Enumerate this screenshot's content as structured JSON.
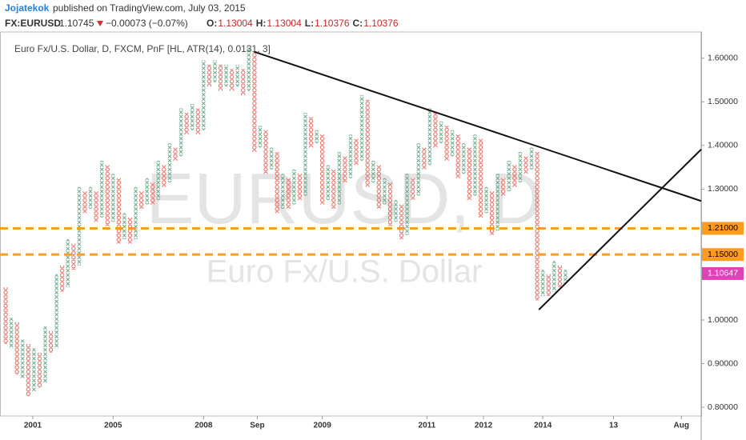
{
  "header": {
    "author": "Jojatekok",
    "published": "published on TradingView.com, July 03, 2015",
    "ticker": "FX:EURUSD",
    "last": "1.10745",
    "change": "−0.00073 (−0.07%)",
    "ohlc": [
      {
        "label": "O:",
        "value": "1.13004"
      },
      {
        "label": "H:",
        "value": "1.13004"
      },
      {
        "label": "L:",
        "value": "1.10376"
      },
      {
        "label": "C:",
        "value": "1.10376"
      }
    ]
  },
  "chart_data": {
    "type": "pnf",
    "title": "Euro Fx/U.S. Dollar, D, FXCM, PnF [HL, ATR(14), 0.0131, 3]",
    "watermark": "EURUSD, D",
    "watermark_subtitle": "Euro Fx/U.S. Dollar",
    "first_column": "O",
    "x_color": "#6aa888",
    "o_color": "#e8675e",
    "lows": [
      0.95,
      0.94,
      0.88,
      0.87,
      0.83,
      0.84,
      0.85,
      0.86,
      0.93,
      0.94,
      1.07,
      1.08,
      1.12,
      1.13,
      1.25,
      1.26,
      1.23,
      1.24,
      1.22,
      1.23,
      1.18,
      1.19,
      1.18,
      1.19,
      1.26,
      1.27,
      1.27,
      1.28,
      1.31,
      1.32,
      1.37,
      1.38,
      1.43,
      1.44,
      1.43,
      1.44,
      1.54,
      1.55,
      1.53,
      1.54,
      1.53,
      1.54,
      1.52,
      1.53,
      1.39,
      1.4,
      1.34,
      1.35,
      1.25,
      1.26,
      1.26,
      1.27,
      1.28,
      1.29,
      1.4,
      1.41,
      1.27,
      1.28,
      1.26,
      1.27,
      1.32,
      1.33,
      1.36,
      1.37,
      1.31,
      1.32,
      1.26,
      1.27,
      1.22,
      1.23,
      1.19,
      1.2,
      1.28,
      1.29,
      1.35,
      1.36,
      1.4,
      1.41,
      1.37,
      1.38,
      1.33,
      1.34,
      1.28,
      1.29,
      1.24,
      1.25,
      1.2,
      1.21,
      1.29,
      1.3,
      1.31,
      1.32,
      1.34,
      1.35,
      1.05,
      1.06,
      1.06,
      1.07,
      1.08,
      1.09
    ],
    "highs": [
      1.07,
      1.0,
      0.99,
      0.95,
      0.94,
      0.93,
      0.92,
      0.98,
      0.97,
      1.1,
      1.12,
      1.18,
      1.17,
      1.3,
      1.29,
      1.3,
      1.29,
      1.36,
      1.35,
      1.33,
      1.32,
      1.24,
      1.23,
      1.3,
      1.29,
      1.32,
      1.31,
      1.36,
      1.35,
      1.4,
      1.39,
      1.48,
      1.47,
      1.49,
      1.48,
      1.59,
      1.58,
      1.59,
      1.58,
      1.58,
      1.57,
      1.58,
      1.57,
      1.62,
      1.61,
      1.44,
      1.43,
      1.39,
      1.38,
      1.33,
      1.32,
      1.34,
      1.33,
      1.47,
      1.46,
      1.43,
      1.42,
      1.35,
      1.34,
      1.38,
      1.37,
      1.42,
      1.41,
      1.51,
      1.5,
      1.36,
      1.35,
      1.32,
      1.31,
      1.27,
      1.26,
      1.33,
      1.32,
      1.4,
      1.39,
      1.48,
      1.47,
      1.45,
      1.44,
      1.43,
      1.42,
      1.4,
      1.39,
      1.42,
      1.41,
      1.3,
      1.29,
      1.33,
      1.32,
      1.36,
      1.35,
      1.38,
      1.37,
      1.39,
      1.38,
      1.11,
      1.1,
      1.13,
      1.12,
      1.11
    ],
    "xlim": [
      -1,
      123
    ],
    "xticks": [
      {
        "value": 4.8,
        "label": "2001"
      },
      {
        "value": 19,
        "label": "2005"
      },
      {
        "value": 35,
        "label": "2008"
      },
      {
        "value": 44.5,
        "label": "Sep"
      },
      {
        "value": 56,
        "label": "2009"
      },
      {
        "value": 74.5,
        "label": "2011"
      },
      {
        "value": 84.5,
        "label": "2012"
      },
      {
        "value": 95,
        "label": "2014"
      },
      {
        "value": 107.5,
        "label": "13"
      },
      {
        "value": 119.5,
        "label": "Aug"
      }
    ],
    "ylim": [
      0.78,
      1.66
    ],
    "yticks": [
      {
        "value": 0.8,
        "label": "0.80000"
      },
      {
        "value": 0.9,
        "label": "0.90000"
      },
      {
        "value": 1.0,
        "label": "1.00000"
      },
      {
        "value": 1.1,
        "label": "1.10000"
      },
      {
        "value": 1.2,
        "label": "1.20000"
      },
      {
        "value": 1.3,
        "label": "1.30000"
      },
      {
        "value": 1.4,
        "label": "1.40000"
      },
      {
        "value": 1.5,
        "label": "1.50000"
      },
      {
        "value": 1.6,
        "label": "1.60000"
      }
    ],
    "hlines": [
      {
        "value": 1.21,
        "label": "1.21000"
      },
      {
        "value": 1.15,
        "label": "1.15000"
      }
    ],
    "hline_color": "#ff9b21",
    "price_label": {
      "value": 1.10647,
      "label": "1.10647"
    },
    "price_color": "#e040b8",
    "trendlines": [
      {
        "x": [
          44,
          123
        ],
        "y": [
          1.6145,
          1.2727
        ]
      },
      {
        "x": [
          94.3,
          123
        ],
        "y": [
          1.0236,
          1.391
        ]
      }
    ]
  }
}
